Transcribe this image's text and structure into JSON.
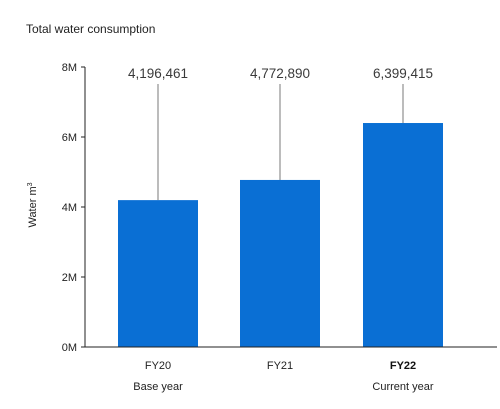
{
  "chart_data": {
    "type": "bar",
    "title": "Total water consumption",
    "ylabel": "Water m",
    "ylabel_superscript": "3",
    "categories": [
      "FY20",
      "FY21",
      "FY22"
    ],
    "category_subtitles": [
      "Base year",
      "",
      "Current year"
    ],
    "highlighted_category": "FY22",
    "values": [
      4196461,
      4772890,
      6399415
    ],
    "data_labels": [
      "4,196,461",
      "4,772,890",
      "6,399,415"
    ],
    "yticks": [
      0,
      2000000,
      4000000,
      6000000,
      8000000
    ],
    "ytick_labels": [
      "0M",
      "2M",
      "4M",
      "6M",
      "8M"
    ],
    "ylim": [
      0,
      8000000
    ],
    "grid": false,
    "bar_color": "#0a6fd4",
    "leader_color": "#7a7a7a"
  }
}
